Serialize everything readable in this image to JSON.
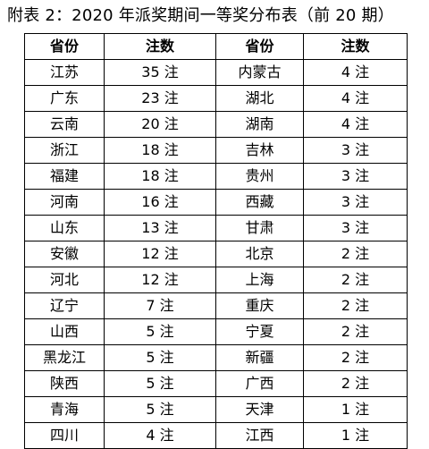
{
  "title": "附表 2：2020 年派奖期间一等奖分布表（前 20 期）",
  "headers": [
    "省份",
    "注数",
    "省份",
    "注数"
  ],
  "rows": [
    [
      "江苏",
      "35 注",
      "内蒙古",
      "4 注"
    ],
    [
      "广东",
      "23 注",
      "湖北",
      "4 注"
    ],
    [
      "云南",
      "20 注",
      "湖南",
      "4 注"
    ],
    [
      "浙江",
      "18 注",
      "吉林",
      "3 注"
    ],
    [
      "福建",
      "18 注",
      "贵州",
      "3 注"
    ],
    [
      "河南",
      "16 注",
      "西藏",
      "3 注"
    ],
    [
      "山东",
      "13 注",
      "甘肃",
      "3 注"
    ],
    [
      "安徽",
      "12 注",
      "北京",
      "2 注"
    ],
    [
      "河北",
      "12 注",
      "上海",
      "2 注"
    ],
    [
      "辽宁",
      "7 注",
      "重庆",
      "2 注"
    ],
    [
      "山西",
      "5 注",
      "宁夏",
      "2 注"
    ],
    [
      "黑龙江",
      "5 注",
      "新疆",
      "2 注"
    ],
    [
      "陕西",
      "5 注",
      "广西",
      "2 注"
    ],
    [
      "青海",
      "5 注",
      "天津",
      "1 注"
    ],
    [
      "四川",
      "4 注",
      "江西",
      "1 注"
    ]
  ]
}
